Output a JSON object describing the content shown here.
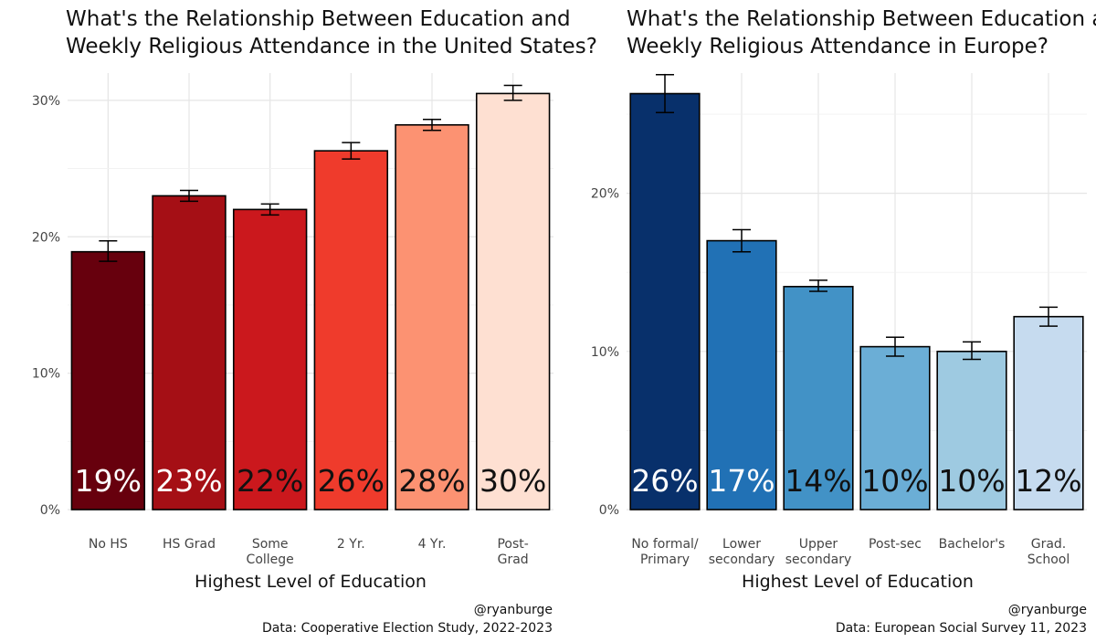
{
  "chart_data": [
    {
      "type": "bar",
      "title_lines": [
        "What's the Relationship Between Education and",
        "Weekly Religious Attendance in the United States?"
      ],
      "xlabel": "Highest Level of Education",
      "ylabel": "",
      "categories": [
        [
          "No HS"
        ],
        [
          "HS Grad"
        ],
        [
          "Some",
          "College"
        ],
        [
          "2 Yr."
        ],
        [
          "4 Yr."
        ],
        [
          "Post-",
          "Grad"
        ]
      ],
      "values": [
        0.189,
        0.23,
        0.22,
        0.263,
        0.282,
        0.305
      ],
      "error_low": [
        0.182,
        0.226,
        0.216,
        0.257,
        0.278,
        0.3
      ],
      "error_high": [
        0.197,
        0.234,
        0.224,
        0.269,
        0.286,
        0.311
      ],
      "data_labels": [
        "19%",
        "23%",
        "22%",
        "26%",
        "28%",
        "30%"
      ],
      "colors": [
        "#67000d",
        "#a50f15",
        "#cb181d",
        "#ef3b2c",
        "#fc9272",
        "#fee0d2"
      ],
      "label_colors": [
        "#ffffff",
        "#ffffff",
        "#111111",
        "#111111",
        "#111111",
        "#111111"
      ],
      "ylim": [
        0,
        0.32
      ],
      "yticks": [
        0,
        0.1,
        0.2,
        0.3
      ],
      "ytick_labels": [
        "0%",
        "10%",
        "20%",
        "30%"
      ],
      "caption_lines": [
        "@ryanburge",
        "Data: Cooperative Election Study, 2022-2023"
      ]
    },
    {
      "type": "bar",
      "title_lines": [
        "What's the Relationship Between Education and",
        "Weekly Religious Attendance in Europe?"
      ],
      "xlabel": "Highest Level of Education",
      "ylabel": "",
      "categories": [
        [
          "No formal/",
          "Primary"
        ],
        [
          "Lower",
          "secondary"
        ],
        [
          "Upper",
          "secondary"
        ],
        [
          "Post-sec"
        ],
        [
          "Bachelor's"
        ],
        [
          "Grad.",
          "School"
        ]
      ],
      "values": [
        0.263,
        0.17,
        0.141,
        0.103,
        0.1,
        0.122
      ],
      "error_low": [
        0.251,
        0.163,
        0.138,
        0.097,
        0.095,
        0.116
      ],
      "error_high": [
        0.275,
        0.177,
        0.145,
        0.109,
        0.106,
        0.128
      ],
      "data_labels": [
        "26%",
        "17%",
        "14%",
        "10%",
        "10%",
        "12%"
      ],
      "colors": [
        "#08306b",
        "#2171b5",
        "#4292c6",
        "#6baed6",
        "#9ecae1",
        "#c6dbef"
      ],
      "label_colors": [
        "#ffffff",
        "#ffffff",
        "#111111",
        "#111111",
        "#111111",
        "#111111"
      ],
      "ylim": [
        0,
        0.276
      ],
      "yticks": [
        0,
        0.1,
        0.2
      ],
      "ytick_labels": [
        "0%",
        "10%",
        "20%"
      ],
      "caption_lines": [
        "@ryanburge",
        "Data: European Social Survey 11, 2023"
      ]
    }
  ]
}
